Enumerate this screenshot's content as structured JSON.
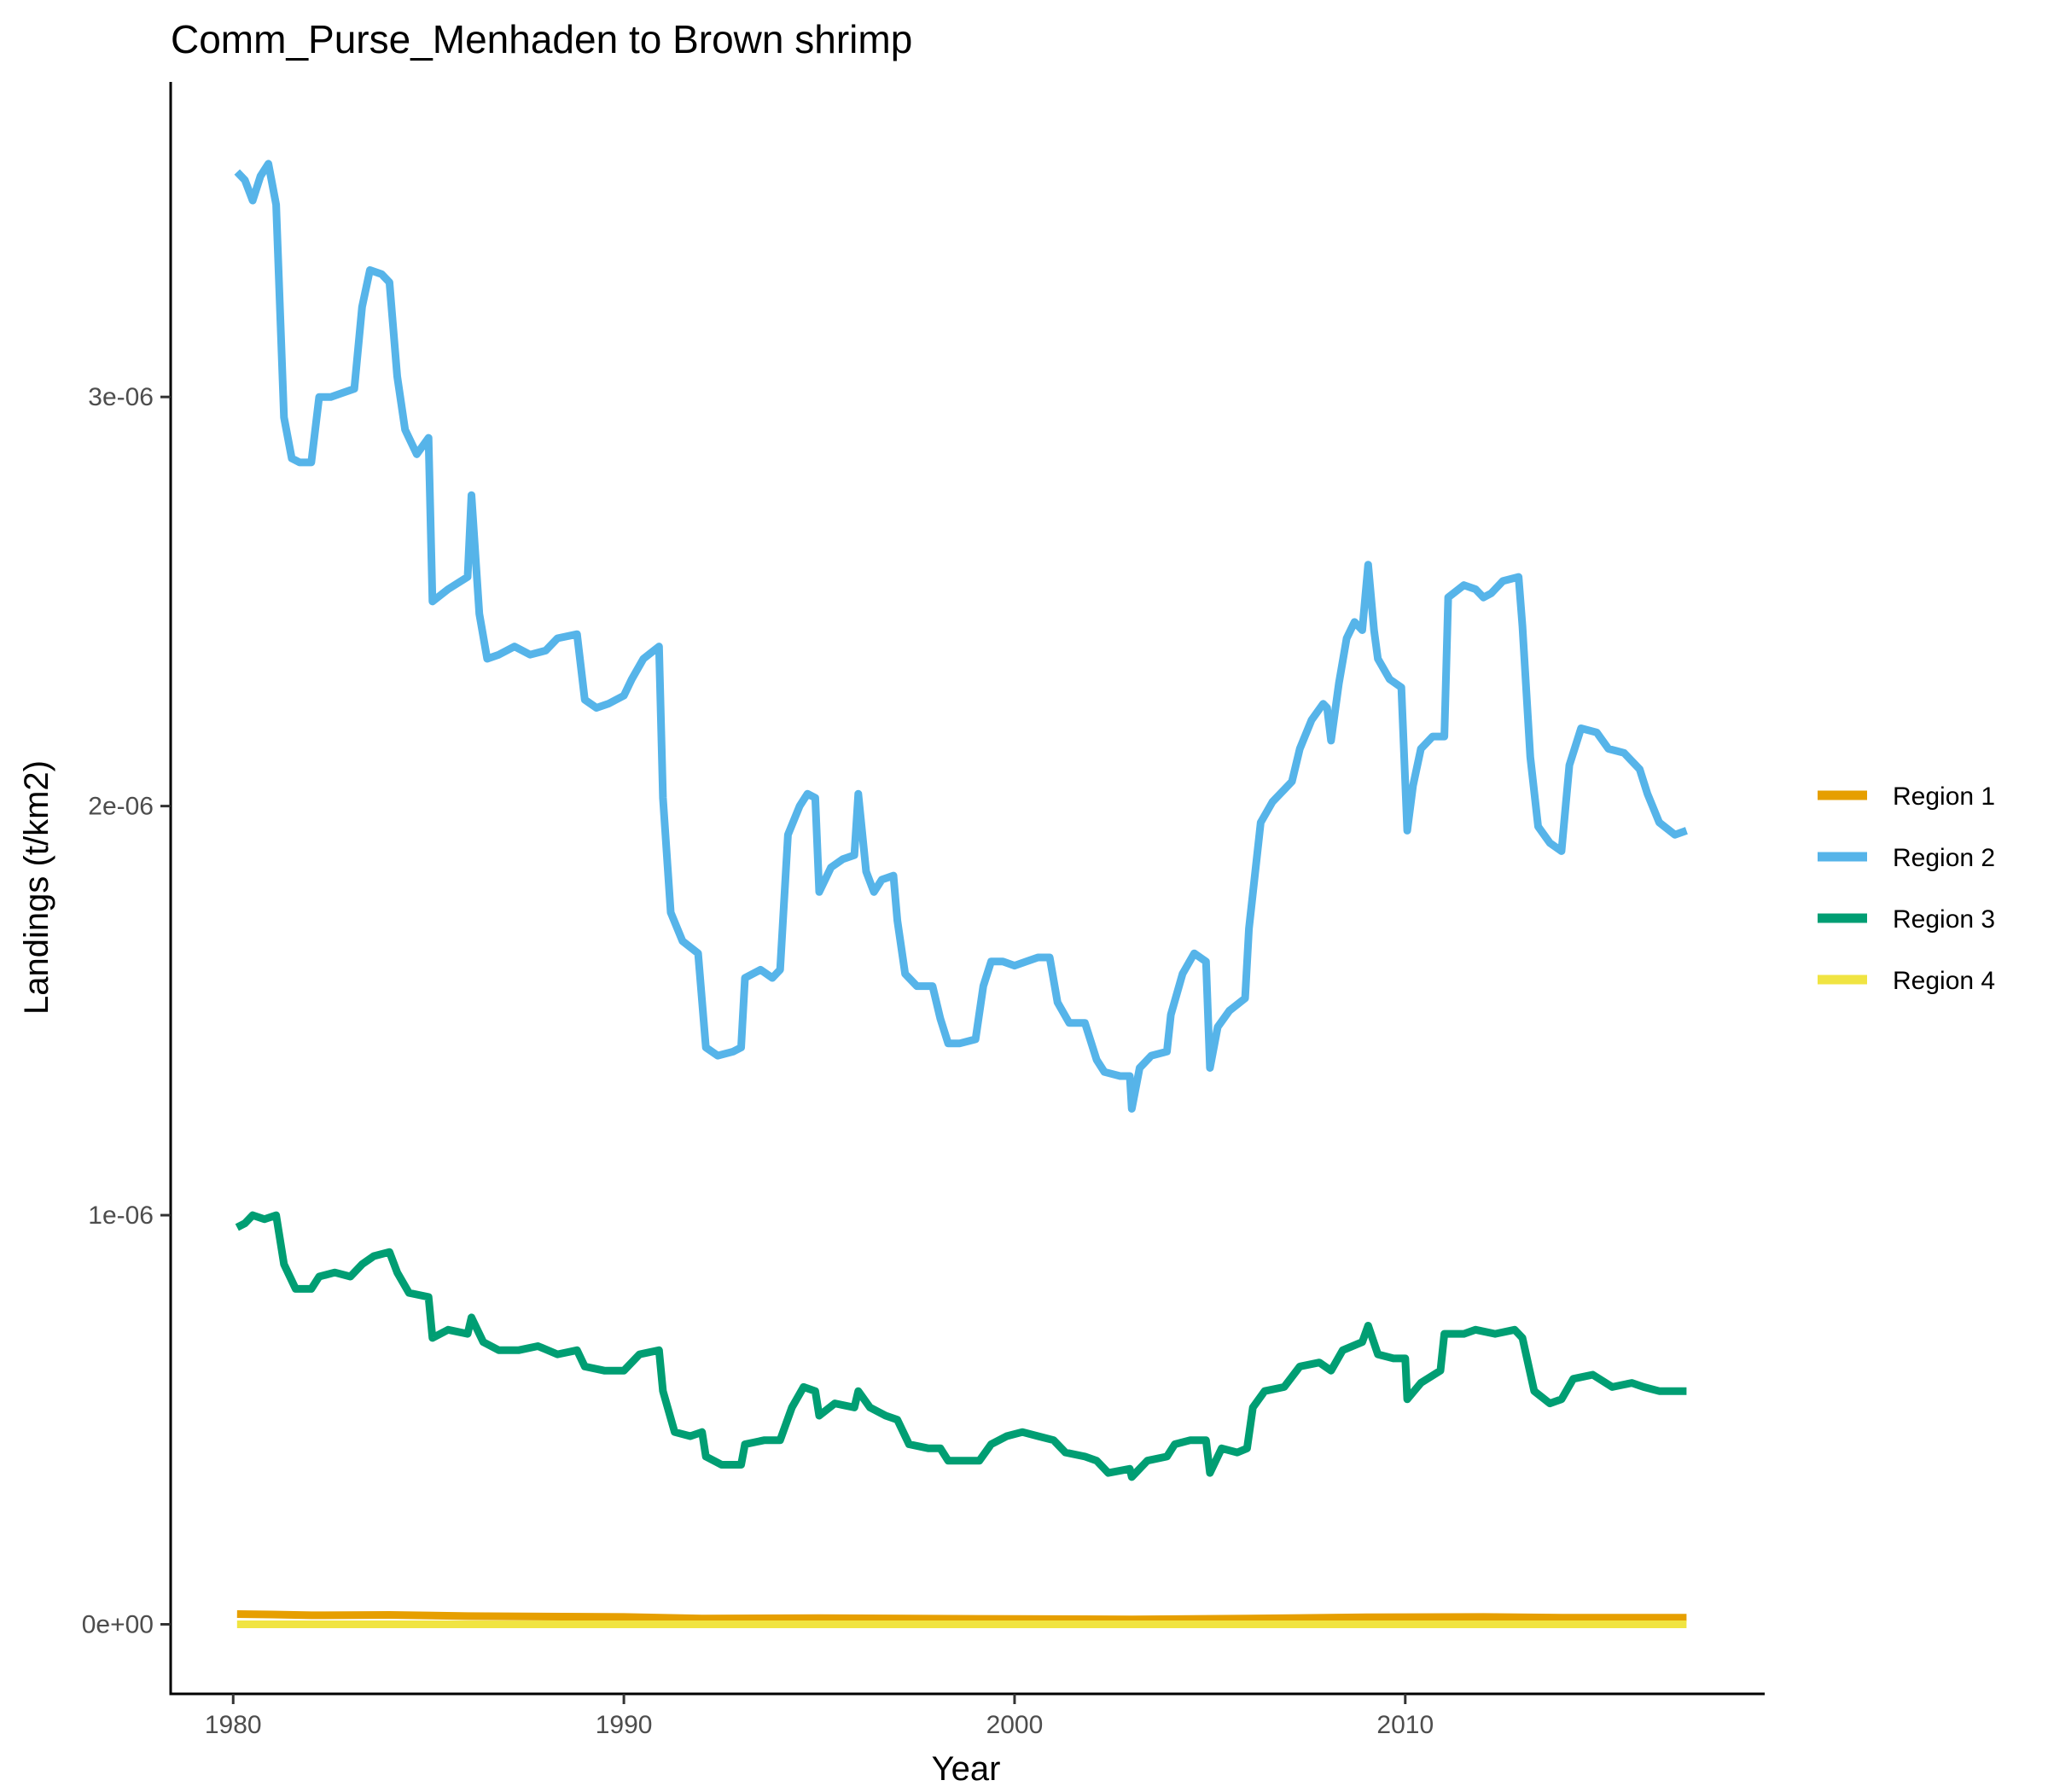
{
  "chart_data": {
    "type": "line",
    "title": "Comm_Purse_Menhaden to Brown shrimp",
    "xlabel": "Year",
    "ylabel": "Landings (t/km2)",
    "xlim": [
      1978.4,
      2019.2
    ],
    "ylim": [
      -1.7e-07,
      3.77e-06
    ],
    "xticks": [
      1980,
      1990,
      2000,
      2010
    ],
    "xtick_labels": [
      "1980",
      "1990",
      "2000",
      "2010"
    ],
    "yticks": [
      0,
      1e-06,
      2e-06,
      3e-06
    ],
    "ytick_labels": [
      "0e+00",
      "1e-06",
      "2e-06",
      "3e-06"
    ],
    "grid": false,
    "legend_position": "right",
    "series": [
      {
        "name": "Region 1",
        "color": "#E69F00",
        "points": [
          [
            1980.1,
            2.5e-08
          ],
          [
            1981,
            2.4e-08
          ],
          [
            1982,
            2.2e-08
          ],
          [
            1984,
            2.3e-08
          ],
          [
            1986,
            2e-08
          ],
          [
            1990,
            1.8e-08
          ],
          [
            1992,
            1.4e-08
          ],
          [
            1995,
            1.5e-08
          ],
          [
            2000,
            1.3e-08
          ],
          [
            2003,
            1.2e-08
          ],
          [
            2006,
            1.4e-08
          ],
          [
            2009,
            1.7e-08
          ],
          [
            2012,
            1.8e-08
          ],
          [
            2014,
            1.6e-08
          ],
          [
            2017.2,
            1.6e-08
          ]
        ]
      },
      {
        "name": "Region 2",
        "color": "#56B4E9",
        "points": [
          [
            1980.1,
            3.55e-06
          ],
          [
            1980.3,
            3.53e-06
          ],
          [
            1980.5,
            3.48e-06
          ],
          [
            1980.7,
            3.54e-06
          ],
          [
            1980.9,
            3.57e-06
          ],
          [
            1981.1,
            3.47e-06
          ],
          [
            1981.3,
            2.95e-06
          ],
          [
            1981.5,
            2.85e-06
          ],
          [
            1981.7,
            2.84e-06
          ],
          [
            1982,
            2.84e-06
          ],
          [
            1982.2,
            3e-06
          ],
          [
            1982.5,
            3e-06
          ],
          [
            1982.8,
            3.01e-06
          ],
          [
            1983.1,
            3.02e-06
          ],
          [
            1983.3,
            3.22e-06
          ],
          [
            1983.5,
            3.31e-06
          ],
          [
            1983.8,
            3.3e-06
          ],
          [
            1984,
            3.28e-06
          ],
          [
            1984.2,
            3.05e-06
          ],
          [
            1984.4,
            2.92e-06
          ],
          [
            1984.7,
            2.86e-06
          ],
          [
            1985,
            2.9e-06
          ],
          [
            1985.1,
            2.5e-06
          ],
          [
            1985.5,
            2.53e-06
          ],
          [
            1986,
            2.56e-06
          ],
          [
            1986.1,
            2.76e-06
          ],
          [
            1986.3,
            2.47e-06
          ],
          [
            1986.5,
            2.36e-06
          ],
          [
            1986.8,
            2.37e-06
          ],
          [
            1987.2,
            2.39e-06
          ],
          [
            1987.6,
            2.37e-06
          ],
          [
            1988,
            2.38e-06
          ],
          [
            1988.3,
            2.41e-06
          ],
          [
            1988.8,
            2.42e-06
          ],
          [
            1989,
            2.26e-06
          ],
          [
            1989.3,
            2.24e-06
          ],
          [
            1989.6,
            2.25e-06
          ],
          [
            1990,
            2.27e-06
          ],
          [
            1990.2,
            2.31e-06
          ],
          [
            1990.5,
            2.36e-06
          ],
          [
            1990.9,
            2.39e-06
          ],
          [
            1991,
            2.02e-06
          ],
          [
            1991.2,
            1.74e-06
          ],
          [
            1991.5,
            1.67e-06
          ],
          [
            1991.9,
            1.64e-06
          ],
          [
            1992.1,
            1.41e-06
          ],
          [
            1992.4,
            1.39e-06
          ],
          [
            1992.8,
            1.4e-06
          ],
          [
            1993,
            1.41e-06
          ],
          [
            1993.1,
            1.58e-06
          ],
          [
            1993.5,
            1.6e-06
          ],
          [
            1993.8,
            1.58e-06
          ],
          [
            1994,
            1.6e-06
          ],
          [
            1994.2,
            1.93e-06
          ],
          [
            1994.5,
            2e-06
          ],
          [
            1994.7,
            2.03e-06
          ],
          [
            1994.9,
            2.02e-06
          ],
          [
            1995,
            1.79e-06
          ],
          [
            1995.3,
            1.85e-06
          ],
          [
            1995.6,
            1.87e-06
          ],
          [
            1995.9,
            1.88e-06
          ],
          [
            1996,
            2.03e-06
          ],
          [
            1996.2,
            1.84e-06
          ],
          [
            1996.4,
            1.79e-06
          ],
          [
            1996.6,
            1.82e-06
          ],
          [
            1996.9,
            1.83e-06
          ],
          [
            1997,
            1.72e-06
          ],
          [
            1997.2,
            1.59e-06
          ],
          [
            1997.5,
            1.56e-06
          ],
          [
            1997.9,
            1.56e-06
          ],
          [
            1998.1,
            1.48e-06
          ],
          [
            1998.3,
            1.42e-06
          ],
          [
            1998.6,
            1.42e-06
          ],
          [
            1999,
            1.43e-06
          ],
          [
            1999.2,
            1.56e-06
          ],
          [
            1999.4,
            1.62e-06
          ],
          [
            1999.7,
            1.62e-06
          ],
          [
            2000,
            1.61e-06
          ],
          [
            2000.3,
            1.62e-06
          ],
          [
            2000.6,
            1.63e-06
          ],
          [
            2000.9,
            1.63e-06
          ],
          [
            2001.1,
            1.52e-06
          ],
          [
            2001.4,
            1.47e-06
          ],
          [
            2001.8,
            1.47e-06
          ],
          [
            2002.1,
            1.38e-06
          ],
          [
            2002.3,
            1.35e-06
          ],
          [
            2002.7,
            1.34e-06
          ],
          [
            2002.95,
            1.34e-06
          ],
          [
            2003,
            1.26e-06
          ],
          [
            2003.2,
            1.36e-06
          ],
          [
            2003.5,
            1.39e-06
          ],
          [
            2003.9,
            1.4e-06
          ],
          [
            2004,
            1.49e-06
          ],
          [
            2004.3,
            1.59e-06
          ],
          [
            2004.6,
            1.64e-06
          ],
          [
            2004.9,
            1.62e-06
          ],
          [
            2005,
            1.36e-06
          ],
          [
            2005.2,
            1.46e-06
          ],
          [
            2005.5,
            1.5e-06
          ],
          [
            2005.9,
            1.53e-06
          ],
          [
            2006,
            1.7e-06
          ],
          [
            2006.3,
            1.96e-06
          ],
          [
            2006.6,
            2.01e-06
          ],
          [
            2006.9,
            2.04e-06
          ],
          [
            2007.1,
            2.06e-06
          ],
          [
            2007.3,
            2.14e-06
          ],
          [
            2007.6,
            2.21e-06
          ],
          [
            2007.9,
            2.25e-06
          ],
          [
            2008,
            2.24e-06
          ],
          [
            2008.1,
            2.16e-06
          ],
          [
            2008.3,
            2.3e-06
          ],
          [
            2008.5,
            2.41e-06
          ],
          [
            2008.7,
            2.45e-06
          ],
          [
            2008.9,
            2.43e-06
          ],
          [
            2009.05,
            2.59e-06
          ],
          [
            2009.2,
            2.43e-06
          ],
          [
            2009.3,
            2.36e-06
          ],
          [
            2009.6,
            2.31e-06
          ],
          [
            2009.9,
            2.29e-06
          ],
          [
            2010.05,
            1.94e-06
          ],
          [
            2010.2,
            2.05e-06
          ],
          [
            2010.4,
            2.14e-06
          ],
          [
            2010.7,
            2.17e-06
          ],
          [
            2011,
            2.17e-06
          ],
          [
            2011.1,
            2.51e-06
          ],
          [
            2011.5,
            2.54e-06
          ],
          [
            2011.8,
            2.53e-06
          ],
          [
            2012,
            2.51e-06
          ],
          [
            2012.2,
            2.52e-06
          ],
          [
            2012.5,
            2.55e-06
          ],
          [
            2012.9,
            2.56e-06
          ],
          [
            2013,
            2.44e-06
          ],
          [
            2013.2,
            2.12e-06
          ],
          [
            2013.4,
            1.95e-06
          ],
          [
            2013.7,
            1.91e-06
          ],
          [
            2014,
            1.89e-06
          ],
          [
            2014.2,
            2.1e-06
          ],
          [
            2014.5,
            2.19e-06
          ],
          [
            2014.9,
            2.18e-06
          ],
          [
            2015.2,
            2.14e-06
          ],
          [
            2015.6,
            2.13e-06
          ],
          [
            2016,
            2.09e-06
          ],
          [
            2016.2,
            2.03e-06
          ],
          [
            2016.5,
            1.96e-06
          ],
          [
            2016.9,
            1.93e-06
          ],
          [
            2017.2,
            1.94e-06
          ]
        ]
      },
      {
        "name": "Region 3",
        "color": "#009E73",
        "points": [
          [
            1980.1,
            9.7e-07
          ],
          [
            1980.3,
            9.8e-07
          ],
          [
            1980.5,
            1e-06
          ],
          [
            1980.8,
            9.9e-07
          ],
          [
            1981.1,
            1e-06
          ],
          [
            1981.3,
            8.8e-07
          ],
          [
            1981.6,
            8.2e-07
          ],
          [
            1982,
            8.2e-07
          ],
          [
            1982.2,
            8.5e-07
          ],
          [
            1982.6,
            8.6e-07
          ],
          [
            1983,
            8.5e-07
          ],
          [
            1983.3,
            8.8e-07
          ],
          [
            1983.6,
            9e-07
          ],
          [
            1984,
            9.1e-07
          ],
          [
            1984.2,
            8.6e-07
          ],
          [
            1984.5,
            8.1e-07
          ],
          [
            1985,
            8e-07
          ],
          [
            1985.1,
            7e-07
          ],
          [
            1985.5,
            7.2e-07
          ],
          [
            1986,
            7.1e-07
          ],
          [
            1986.1,
            7.5e-07
          ],
          [
            1986.4,
            6.9e-07
          ],
          [
            1986.8,
            6.7e-07
          ],
          [
            1987.3,
            6.7e-07
          ],
          [
            1987.8,
            6.8e-07
          ],
          [
            1988.3,
            6.6e-07
          ],
          [
            1988.8,
            6.7e-07
          ],
          [
            1989,
            6.3e-07
          ],
          [
            1989.5,
            6.2e-07
          ],
          [
            1990,
            6.2e-07
          ],
          [
            1990.4,
            6.6e-07
          ],
          [
            1990.9,
            6.7e-07
          ],
          [
            1991,
            5.7e-07
          ],
          [
            1991.3,
            4.7e-07
          ],
          [
            1991.7,
            4.6e-07
          ],
          [
            1992,
            4.7e-07
          ],
          [
            1992.1,
            4.1e-07
          ],
          [
            1992.5,
            3.9e-07
          ],
          [
            1993,
            3.9e-07
          ],
          [
            1993.1,
            4.4e-07
          ],
          [
            1993.6,
            4.5e-07
          ],
          [
            1994,
            4.5e-07
          ],
          [
            1994.3,
            5.3e-07
          ],
          [
            1994.6,
            5.8e-07
          ],
          [
            1994.9,
            5.7e-07
          ],
          [
            1995,
            5.1e-07
          ],
          [
            1995.4,
            5.4e-07
          ],
          [
            1995.9,
            5.3e-07
          ],
          [
            1996,
            5.7e-07
          ],
          [
            1996.3,
            5.3e-07
          ],
          [
            1996.7,
            5.1e-07
          ],
          [
            1997,
            5e-07
          ],
          [
            1997.3,
            4.4e-07
          ],
          [
            1997.8,
            4.3e-07
          ],
          [
            1998.1,
            4.3e-07
          ],
          [
            1998.3,
            4e-07
          ],
          [
            1998.8,
            4e-07
          ],
          [
            1999.1,
            4e-07
          ],
          [
            1999.4,
            4.4e-07
          ],
          [
            1999.8,
            4.6e-07
          ],
          [
            2000.2,
            4.7e-07
          ],
          [
            2000.6,
            4.6e-07
          ],
          [
            2001,
            4.5e-07
          ],
          [
            2001.3,
            4.2e-07
          ],
          [
            2001.8,
            4.1e-07
          ],
          [
            2002.1,
            4e-07
          ],
          [
            2002.4,
            3.7e-07
          ],
          [
            2002.95,
            3.8e-07
          ],
          [
            2003,
            3.6e-07
          ],
          [
            2003.4,
            4e-07
          ],
          [
            2003.9,
            4.1e-07
          ],
          [
            2004.1,
            4.4e-07
          ],
          [
            2004.5,
            4.5e-07
          ],
          [
            2004.9,
            4.5e-07
          ],
          [
            2005,
            3.7e-07
          ],
          [
            2005.3,
            4.3e-07
          ],
          [
            2005.7,
            4.2e-07
          ],
          [
            2005.95,
            4.3e-07
          ],
          [
            2006.1,
            5.3e-07
          ],
          [
            2006.4,
            5.7e-07
          ],
          [
            2006.9,
            5.8e-07
          ],
          [
            2007.3,
            6.3e-07
          ],
          [
            2007.8,
            6.4e-07
          ],
          [
            2008.1,
            6.2e-07
          ],
          [
            2008.4,
            6.7e-07
          ],
          [
            2008.9,
            6.9e-07
          ],
          [
            2009.05,
            7.3e-07
          ],
          [
            2009.3,
            6.6e-07
          ],
          [
            2009.7,
            6.5e-07
          ],
          [
            2010,
            6.5e-07
          ],
          [
            2010.05,
            5.5e-07
          ],
          [
            2010.4,
            5.9e-07
          ],
          [
            2010.9,
            6.2e-07
          ],
          [
            2011,
            7.1e-07
          ],
          [
            2011.5,
            7.1e-07
          ],
          [
            2011.8,
            7.2e-07
          ],
          [
            2012.3,
            7.1e-07
          ],
          [
            2012.8,
            7.2e-07
          ],
          [
            2013,
            7e-07
          ],
          [
            2013.3,
            5.7e-07
          ],
          [
            2013.7,
            5.4e-07
          ],
          [
            2014,
            5.5e-07
          ],
          [
            2014.3,
            6e-07
          ],
          [
            2014.8,
            6.1e-07
          ],
          [
            2015.3,
            5.8e-07
          ],
          [
            2015.8,
            5.9e-07
          ],
          [
            2016.1,
            5.8e-07
          ],
          [
            2016.5,
            5.7e-07
          ],
          [
            2017.2,
            5.7e-07
          ]
        ]
      },
      {
        "name": "Region 4",
        "color": "#F0E442",
        "points": [
          [
            1980.1,
            0
          ],
          [
            1990,
            0
          ],
          [
            2000,
            0
          ],
          [
            2010,
            0
          ],
          [
            2017.2,
            0
          ]
        ]
      }
    ]
  }
}
